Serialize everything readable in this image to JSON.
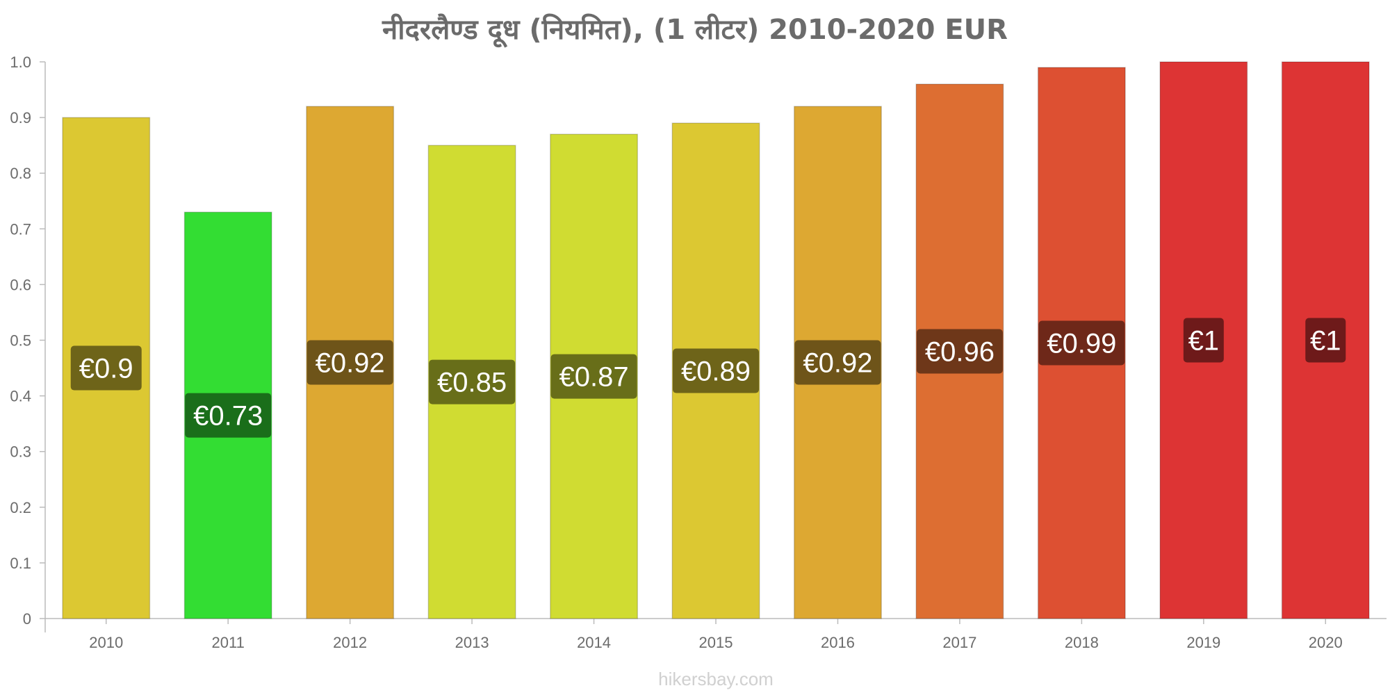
{
  "chart_data": {
    "type": "bar",
    "title": "नीदरलैण्ड   दूध   (नियमित), (1 लीटर) 2010-2020 EUR",
    "categories": [
      "2010",
      "2011",
      "2012",
      "2013",
      "2014",
      "2015",
      "2016",
      "2017",
      "2018",
      "2019",
      "2020"
    ],
    "values": [
      0.9,
      0.73,
      0.92,
      0.85,
      0.87,
      0.89,
      0.92,
      0.96,
      0.99,
      1.0,
      1.0
    ],
    "value_labels": [
      "€0.9",
      "€0.73",
      "€0.92",
      "€0.85",
      "€0.87",
      "€0.89",
      "€0.92",
      "€0.96",
      "€0.99",
      "€1",
      "€1"
    ],
    "bar_colors": [
      "#dcc832",
      "#33dd33",
      "#dda832",
      "#d0dc32",
      "#d0dc32",
      "#dcc832",
      "#dda832",
      "#dd6e32",
      "#dd5032",
      "#dd3434",
      "#dd3434"
    ],
    "label_bg_colors": [
      "#6e6419",
      "#1a6e1a",
      "#6e5419",
      "#686e19",
      "#686e19",
      "#6e6419",
      "#6e5419",
      "#6e3719",
      "#6e2819",
      "#6e1a1a",
      "#6e1a1a"
    ],
    "yticks": [
      "0",
      "0.1",
      "0.2",
      "0.3",
      "0.4",
      "0.5",
      "0.6",
      "0.7",
      "0.8",
      "0.9",
      "1.0"
    ],
    "ylim": [
      0,
      1.0
    ],
    "xlabel": "",
    "ylabel": "",
    "grid": false,
    "legend": "none"
  },
  "watermark": "hikersbay.com"
}
